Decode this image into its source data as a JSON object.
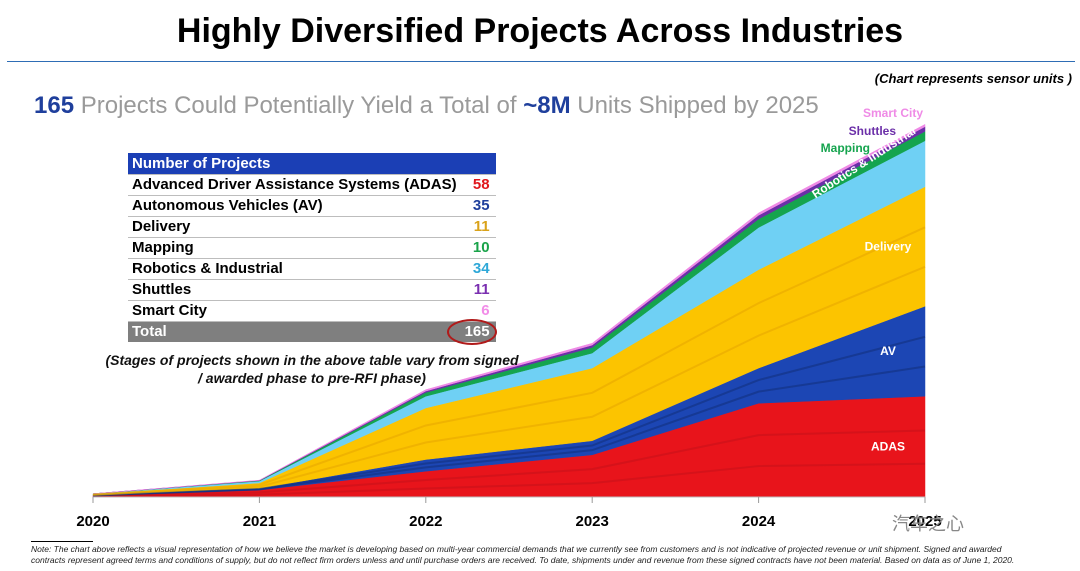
{
  "header": {
    "title": "Highly Diversified Projects Across Industries",
    "units_note": "(Chart represents sensor units )"
  },
  "subtitle": {
    "projects_count": "165",
    "middle_text": " Projects Could Potentially Yield a Total of ",
    "units_total": "~8M",
    "end_text": " Units Shipped by 2025"
  },
  "table": {
    "header": "Number of Projects",
    "rows": [
      {
        "label": "Advanced Driver Assistance Systems (ADAS)",
        "value": "58",
        "color": "#e0161b"
      },
      {
        "label": "Autonomous Vehicles (AV)",
        "value": "35",
        "color": "#1f3f9c"
      },
      {
        "label": "Delivery",
        "value": "11",
        "color": "#d9a21a"
      },
      {
        "label": "Mapping",
        "value": "10",
        "color": "#1aa34a"
      },
      {
        "label": "Robotics & Industrial",
        "value": "34",
        "color": "#2fa8d8"
      },
      {
        "label": "Shuttles",
        "value": "11",
        "color": "#7a2fb0"
      },
      {
        "label": "Smart City",
        "value": "6",
        "color": "#f28ce8"
      }
    ],
    "total_label": "Total",
    "total_value": "165"
  },
  "stages_note": "(Stages of projects shown in the above table vary from signed / awarded phase to pre-RFI phase)",
  "chart_data": {
    "type": "area",
    "stacked": true,
    "x": [
      "2020",
      "2021",
      "2022",
      "2023",
      "2024",
      "2025"
    ],
    "ylim": [
      0,
      8
    ],
    "series": [
      {
        "name": "ADAS",
        "values": [
          0.03,
          0.15,
          0.55,
          0.9,
          2.0,
          2.15
        ],
        "color": "#e8141b",
        "label_position": "inside-right"
      },
      {
        "name": "AV",
        "values": [
          0.01,
          0.03,
          0.25,
          0.3,
          0.75,
          1.92
        ],
        "color": "#1c46b4",
        "label_position": "inside-right"
      },
      {
        "name": "Delivery",
        "values": [
          0.02,
          0.12,
          1.1,
          1.55,
          2.1,
          2.55
        ],
        "color": "#fcc400",
        "label_position": "inside-right"
      },
      {
        "name": "Robotics & Industrial",
        "values": [
          0.01,
          0.04,
          0.25,
          0.32,
          0.9,
          0.98
        ],
        "color": "#6fd0f4",
        "label_position": "inside-right-rotated"
      },
      {
        "name": "Mapping",
        "values": [
          0.0,
          0.01,
          0.08,
          0.12,
          0.18,
          0.2
        ],
        "color": "#15a44e",
        "label_position": "outside-right"
      },
      {
        "name": "Shuttles",
        "values": [
          0.0,
          0.005,
          0.03,
          0.05,
          0.08,
          0.1
        ],
        "color": "#6b2fa8",
        "label_position": "outside-right"
      },
      {
        "name": "Smart City",
        "values": [
          0.0,
          0.005,
          0.03,
          0.04,
          0.05,
          0.05
        ],
        "color": "#ef8ae6",
        "label_position": "outside-right"
      }
    ],
    "grid": false,
    "legend": "none"
  },
  "footnote": "Note: The chart above reflects a visual representation of how we believe the market is developing based on multi-year commercial demands that we currently see from customers and is not indicative of projected revenue or unit shipment. Signed and awarded contracts represent agreed terms and conditions of supply, but do not reflect firm orders unless and until purchase orders are received. To date, shipments under and revenue from these signed contracts have not been material. Based on data as of June 1, 2020.",
  "watermark": "汽车之心"
}
